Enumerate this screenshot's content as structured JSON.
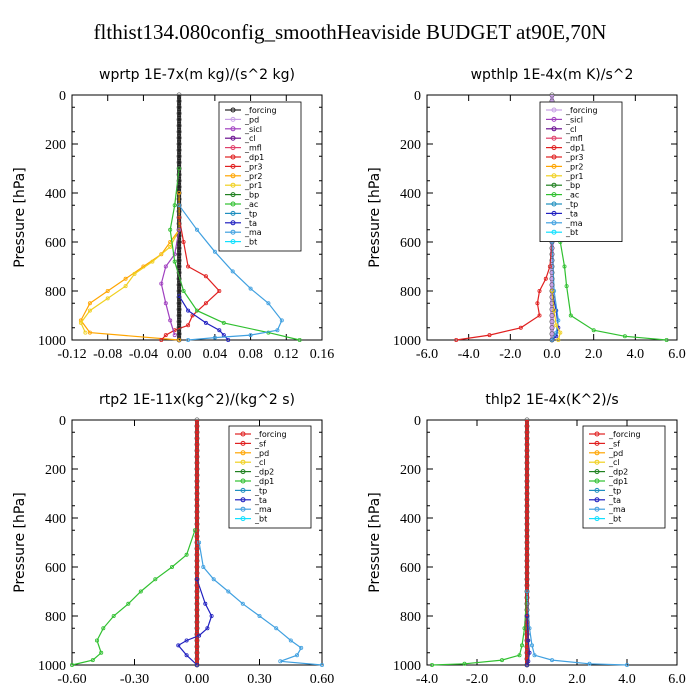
{
  "figure_title": "flthist134.080config_smoothHeaviside  BUDGET at90E,70N",
  "chart_data": [
    {
      "type": "line",
      "title": "wprtp  1E-7x(m kg)/(s^2 kg)",
      "ylabel": "Pressure [hPa]",
      "xlim": [
        -0.12,
        0.16
      ],
      "ylim": [
        1000,
        0
      ],
      "xticks": [
        "-0.12",
        "-0.08",
        "-0.04",
        "0.00",
        "0.04",
        "0.08",
        "0.12",
        "0.16"
      ],
      "yticks": [
        "0",
        "200",
        "400",
        "600",
        "800",
        "1000"
      ],
      "legend": [
        "_forcing",
        "_pd",
        "_sicl",
        "_cl",
        "_mfl",
        "_dp1",
        "_pr3",
        "_pr2",
        "_pr1",
        "_bp",
        "_ac",
        "_tp",
        "_ta",
        "_ma",
        "_bt"
      ],
      "legend_colors": [
        "#222222",
        "#c8a0e6",
        "#a040c0",
        "#6a1090",
        "#e0406a",
        "#e02020",
        "#e02020",
        "#ffa500",
        "#f0d020",
        "#208020",
        "#30c030",
        "#1f8fbf",
        "#2020c0",
        "#40a0e0",
        "#10e0ff"
      ],
      "series": [
        {
          "name": "_forcing",
          "color": "#222222",
          "x": [
            0.0,
            0.0
          ],
          "y": [
            0,
            1000
          ]
        },
        {
          "name": "_pr2",
          "color": "#ffa500",
          "x": [
            0.0,
            0.0,
            -0.01,
            -0.02,
            -0.04,
            -0.06,
            -0.08,
            -0.1,
            -0.11,
            -0.1,
            0.0
          ],
          "y": [
            400,
            550,
            600,
            650,
            700,
            750,
            800,
            850,
            920,
            970,
            1000
          ]
        },
        {
          "name": "_pr1",
          "color": "#f0d020",
          "x": [
            0.0,
            -0.01,
            -0.03,
            -0.05,
            -0.06,
            -0.08,
            -0.1,
            -0.11,
            -0.105
          ],
          "y": [
            550,
            620,
            680,
            730,
            780,
            830,
            880,
            930,
            970
          ]
        },
        {
          "name": "_dp1",
          "color": "#e02020",
          "x": [
            0.0,
            0.005,
            0.01,
            0.03,
            0.045,
            0.03,
            0.015,
            0.01,
            -0.005,
            -0.015,
            -0.02
          ],
          "y": [
            500,
            600,
            700,
            740,
            800,
            850,
            900,
            940,
            960,
            980,
            1000
          ]
        },
        {
          "name": "_sicl",
          "color": "#a040c0",
          "x": [
            0.0,
            -0.005,
            -0.015,
            -0.02,
            -0.015,
            -0.01,
            -0.005
          ],
          "y": [
            550,
            650,
            700,
            770,
            850,
            920,
            980
          ]
        },
        {
          "name": "_ac",
          "color": "#30c030",
          "x": [
            0.0,
            -0.005,
            -0.01,
            -0.005,
            0.005,
            0.02,
            0.05,
            0.1,
            0.135
          ],
          "y": [
            300,
            450,
            550,
            680,
            800,
            880,
            930,
            970,
            1000
          ]
        },
        {
          "name": "_ta",
          "color": "#2020c0",
          "x": [
            0.0,
            0.01,
            0.03,
            0.045,
            0.05,
            0.055
          ],
          "y": [
            820,
            880,
            930,
            960,
            980,
            1000
          ]
        },
        {
          "name": "_ma",
          "color": "#40a0e0",
          "x": [
            0.0,
            0.02,
            0.04,
            0.06,
            0.08,
            0.1,
            0.115,
            0.11,
            0.08,
            0.04,
            0.01
          ],
          "y": [
            450,
            550,
            640,
            720,
            790,
            850,
            920,
            960,
            980,
            990,
            1000
          ]
        }
      ]
    },
    {
      "type": "line",
      "title": "wpthlp  1E-4x(m K)/s^2",
      "ylabel": "Pressure [hPa]",
      "xlim": [
        -6.0,
        6.0
      ],
      "ylim": [
        1000,
        0
      ],
      "xticks": [
        "-6.0",
        "-4.0",
        "-2.0",
        "0.0",
        "2.0",
        "4.0",
        "6.0"
      ],
      "yticks": [
        "0",
        "200",
        "400",
        "600",
        "800",
        "1000"
      ],
      "legend": [
        "_forcing",
        "_sicl",
        "_cl",
        "_mfl",
        "_dp1",
        "_pr3",
        "_pr2",
        "_pr1",
        "_bp",
        "_ac",
        "_tp",
        "_ta",
        "_ma",
        "_bt"
      ],
      "legend_colors": [
        "#c8a0e6",
        "#a040c0",
        "#6a1090",
        "#e0406a",
        "#e02020",
        "#e02020",
        "#ffa500",
        "#f0d020",
        "#208020",
        "#30c030",
        "#1f8fbf",
        "#2020c0",
        "#40a0e0",
        "#10e0ff"
      ],
      "series": [
        {
          "name": "_forcing",
          "color": "#c8a0e6",
          "x": [
            0.0,
            0.0
          ],
          "y": [
            0,
            1000
          ]
        },
        {
          "name": "_dp1",
          "color": "#e02020",
          "x": [
            0.0,
            -0.1,
            -0.3,
            -0.6,
            -0.7,
            -0.6,
            -1.5,
            -3.0,
            -4.6
          ],
          "y": [
            600,
            700,
            750,
            800,
            850,
            900,
            950,
            980,
            1000
          ]
        },
        {
          "name": "_ac",
          "color": "#30c030",
          "x": [
            0.0,
            0.2,
            0.4,
            0.6,
            0.7,
            0.9,
            2.0,
            3.5,
            5.5
          ],
          "y": [
            300,
            500,
            600,
            700,
            780,
            900,
            960,
            985,
            1000
          ]
        },
        {
          "name": "_ta",
          "color": "#2020c0",
          "x": [
            0.0,
            0.2,
            0.3,
            0.2,
            0.0
          ],
          "y": [
            800,
            880,
            950,
            985,
            1000
          ]
        },
        {
          "name": "_ma",
          "color": "#40a0e0",
          "x": [
            0.0,
            0.1,
            0.3,
            0.2,
            0.0
          ],
          "y": [
            600,
            800,
            920,
            970,
            1000
          ]
        },
        {
          "name": "_pr1",
          "color": "#f0d020",
          "x": [
            0.0,
            0.1,
            0.2,
            0.4,
            0.3
          ],
          "y": [
            800,
            880,
            940,
            970,
            1000
          ]
        }
      ]
    },
    {
      "type": "line",
      "title": "rtp2  1E-11x(kg^2)/(kg^2 s)",
      "ylabel": "Pressure [hPa]",
      "xlim": [
        -0.6,
        0.6
      ],
      "ylim": [
        1000,
        0
      ],
      "xticks": [
        "-0.60",
        "-0.30",
        "0.00",
        "0.30",
        "0.60"
      ],
      "yticks": [
        "0",
        "200",
        "400",
        "600",
        "800",
        "1000"
      ],
      "legend": [
        "_forcing",
        "_sf",
        "_pd",
        "_cl",
        "_dp2",
        "_dp1",
        "_tp",
        "_ta",
        "_ma",
        "_bt"
      ],
      "legend_colors": [
        "#e02020",
        "#e02020",
        "#ffa500",
        "#f0d020",
        "#208020",
        "#30c030",
        "#1f8fbf",
        "#2020c0",
        "#40a0e0",
        "#10e0ff"
      ],
      "series": [
        {
          "name": "_forcing",
          "color": "#e02020",
          "x": [
            0.0,
            0.0
          ],
          "y": [
            0,
            1000
          ]
        },
        {
          "name": "_dp1",
          "color": "#30c030",
          "x": [
            -0.01,
            -0.05,
            -0.12,
            -0.2,
            -0.27,
            -0.33,
            -0.4,
            -0.45,
            -0.48,
            -0.46,
            -0.5,
            -0.6
          ],
          "y": [
            450,
            550,
            600,
            650,
            700,
            750,
            800,
            850,
            900,
            950,
            980,
            1000
          ]
        },
        {
          "name": "_ma",
          "color": "#40a0e0",
          "x": [
            0.01,
            0.03,
            0.08,
            0.15,
            0.22,
            0.3,
            0.38,
            0.45,
            0.5,
            0.48,
            0.4,
            0.6
          ],
          "y": [
            500,
            600,
            650,
            700,
            750,
            800,
            850,
            900,
            930,
            960,
            985,
            1000
          ]
        },
        {
          "name": "_ta",
          "color": "#2020c0",
          "x": [
            0.0,
            0.04,
            0.07,
            0.05,
            0.01,
            -0.05,
            -0.09,
            -0.05,
            0.0
          ],
          "y": [
            650,
            750,
            800,
            850,
            880,
            900,
            920,
            960,
            1000
          ]
        }
      ]
    },
    {
      "type": "line",
      "title": "thlp2  1E-4x(K^2)/s",
      "ylabel": "Pressure [hPa]",
      "xlim": [
        -4.0,
        6.0
      ],
      "ylim": [
        1000,
        0
      ],
      "xticks": [
        "-4.0",
        "-2.0",
        "0.0",
        "2.0",
        "4.0",
        "6.0"
      ],
      "yticks": [
        "0",
        "200",
        "400",
        "600",
        "800",
        "1000"
      ],
      "legend": [
        "_forcing",
        "_sf",
        "_pd",
        "_cl",
        "_dp2",
        "_dp1",
        "_tp",
        "_ta",
        "_ma",
        "_bt"
      ],
      "legend_colors": [
        "#e02020",
        "#e02020",
        "#ffa500",
        "#f0d020",
        "#208020",
        "#30c030",
        "#1f8fbf",
        "#2020c0",
        "#40a0e0",
        "#10e0ff"
      ],
      "series": [
        {
          "name": "_forcing",
          "color": "#e02020",
          "x": [
            0.0,
            0.0
          ],
          "y": [
            0,
            1000
          ]
        },
        {
          "name": "_dp1",
          "color": "#30c030",
          "x": [
            0.0,
            -0.1,
            -0.2,
            -0.3,
            -1.0,
            -2.5,
            -3.8
          ],
          "y": [
            700,
            850,
            920,
            960,
            980,
            995,
            1000
          ]
        },
        {
          "name": "_ma",
          "color": "#40a0e0",
          "x": [
            0.0,
            0.1,
            0.2,
            0.3,
            1.0,
            2.5,
            4.0
          ],
          "y": [
            700,
            850,
            920,
            960,
            980,
            995,
            1000
          ]
        },
        {
          "name": "_ta",
          "color": "#2020c0",
          "x": [
            0.0,
            0.05,
            0.1,
            0.05,
            0.0
          ],
          "y": [
            800,
            900,
            950,
            985,
            1000
          ]
        }
      ]
    }
  ]
}
